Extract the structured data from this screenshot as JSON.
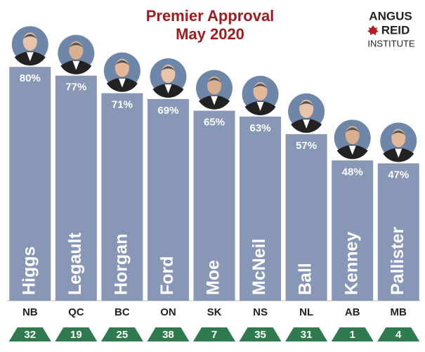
{
  "chart_data": {
    "type": "bar",
    "title": "Premier Approval",
    "subtitle": "May 2020",
    "categories": [
      "NB",
      "QC",
      "BC",
      "ON",
      "SK",
      "NS",
      "NL",
      "AB",
      "MB"
    ],
    "premiers": [
      "Higgs",
      "Legault",
      "Horgan",
      "Ford",
      "Moe",
      "McNeil",
      "Ball",
      "Kenney",
      "Pallister"
    ],
    "values": [
      80,
      77,
      71,
      69,
      65,
      63,
      57,
      48,
      47
    ],
    "value_labels": [
      "80%",
      "77%",
      "71%",
      "69%",
      "65%",
      "63%",
      "57%",
      "48%",
      "47%"
    ],
    "ranks": [
      32,
      19,
      25,
      38,
      7,
      35,
      31,
      1,
      4
    ],
    "color": "#8797b5",
    "rank_color": "#2f7a4f",
    "ylim": [
      0,
      100
    ]
  },
  "logo": {
    "line1": "ANGUS",
    "line2": "REID",
    "line3": "INSTITUTE"
  }
}
